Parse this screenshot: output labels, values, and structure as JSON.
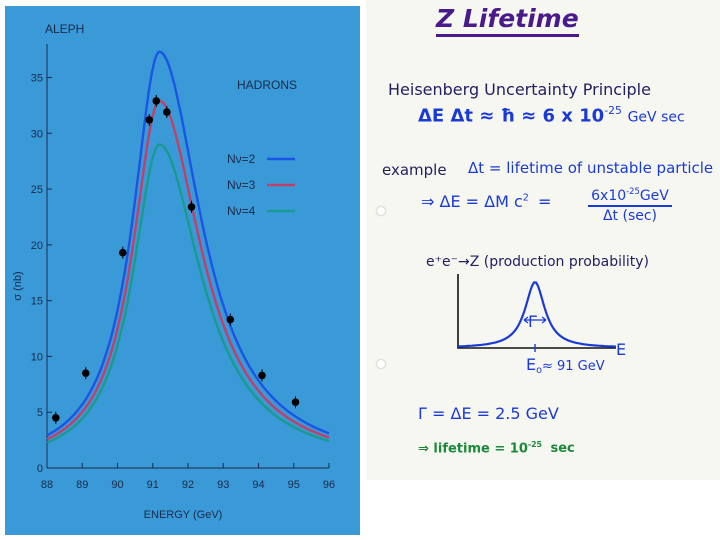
{
  "chart_data": {
    "type": "line",
    "title": "ALEPH",
    "subtitle": "HADRONS",
    "xlabel": "ENERGY (GeV)",
    "ylabel": "σ (nb)",
    "xlim": [
      88,
      96
    ],
    "ylim": [
      0,
      38
    ],
    "xticks": [
      "88",
      "89",
      "90",
      "91",
      "92",
      "93",
      "94",
      "95",
      "96"
    ],
    "yticks": [
      "0",
      "5",
      "10",
      "15",
      "20",
      "25",
      "30",
      "35"
    ],
    "legend_position": "right",
    "series": [
      {
        "name": "Nν=2",
        "color": "#1a55e6",
        "peak": 37.3
      },
      {
        "name": "Nν=3",
        "color": "#c0406a",
        "peak": 32.9
      },
      {
        "name": "Nν=4",
        "color": "#1a9a8e",
        "peak": 29.0
      }
    ],
    "resonance": {
      "mass": 91.19,
      "width": 2.5,
      "left_width": 1.86,
      "right_width": 2.9
    },
    "points": {
      "x": [
        88.25,
        89.1,
        90.15,
        90.9,
        91.1,
        91.4,
        92.1,
        93.2,
        94.1,
        95.05
      ],
      "y": [
        4.5,
        8.5,
        19.3,
        31.2,
        32.9,
        31.9,
        23.4,
        13.3,
        8.3,
        5.9
      ]
    }
  },
  "notes": {
    "title": "Z Lifetime",
    "heisenberg": "Heisenberg Uncertainty Principle",
    "relation": "ΔE Δt ≈ ħ ≈ 6 x 10",
    "relation_exp": "-25",
    "relation_unit": "GeV sec",
    "example_label": "example",
    "dt_def": "Δt = lifetime of unstable particle",
    "de_def": "⇒ ΔE = ΔM c",
    "de_def_exp": "2",
    "de_eq": "=",
    "frac_num": "6x10",
    "frac_num_exp": "-25",
    "frac_num_unit": "GeV",
    "frac_den": "Δt (sec)",
    "production": "e⁺e⁻→Z (production probability)",
    "gamma_sym": "Γ",
    "axis_e": "E",
    "e0": "E",
    "e0_sub": "o",
    "e0_val": "≈ 91 GeV",
    "gamma_eq": "Γ = ΔE = 2.5 GeV",
    "lifetime": "⇒ lifetime = 10",
    "lifetime_exp": "-25",
    "lifetime_unit": "sec"
  },
  "colors": {
    "panel_blue": "#3a9ad8",
    "ink_blue": "#1a3ad8",
    "ink_green": "#1a8a3a",
    "ink_navy": "#242060",
    "ink_purple": "#4a1a8a"
  }
}
